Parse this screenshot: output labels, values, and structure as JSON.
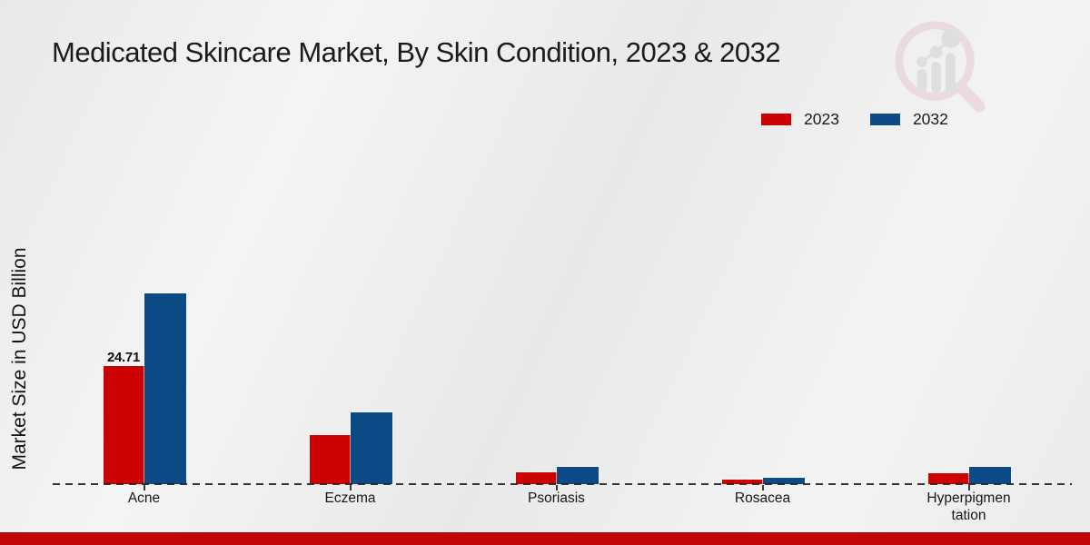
{
  "page": {
    "footer_color": "#c30505",
    "background_color": "#ededed"
  },
  "chart_data": {
    "type": "bar",
    "title": "Medicated Skincare Market, By Skin Condition, 2023 & 2032",
    "xlabel": "",
    "ylabel": "Market Size in USD Billion",
    "categories": [
      "Acne",
      "Eczema",
      "Psoriasis",
      "Rosacea",
      "Hyperpigmentation"
    ],
    "category_display": [
      "Acne",
      "Eczema",
      "Psoriasis",
      "Rosacea",
      "Hyperpigmen\ntation"
    ],
    "series": [
      {
        "name": "2023",
        "color": "#cc0101",
        "values": [
          24.71,
          10.2,
          2.4,
          0.9,
          2.2
        ],
        "data_labels": [
          "24.71",
          null,
          null,
          null,
          null
        ]
      },
      {
        "name": "2032",
        "color": "#0b4a85",
        "values": [
          40.0,
          15.0,
          3.7,
          1.4,
          3.7
        ],
        "data_labels": [
          null,
          null,
          null,
          null,
          null
        ]
      }
    ],
    "ylim": [
      0,
      45
    ],
    "grid": false,
    "legend_position": "top-right",
    "baseline_style": "dashed",
    "axis_ticks_labeled": false
  },
  "watermark": {
    "name": "market-research-future-logo",
    "ring_color": "#e9cdd2",
    "bars_color": "#d2d3d8"
  }
}
